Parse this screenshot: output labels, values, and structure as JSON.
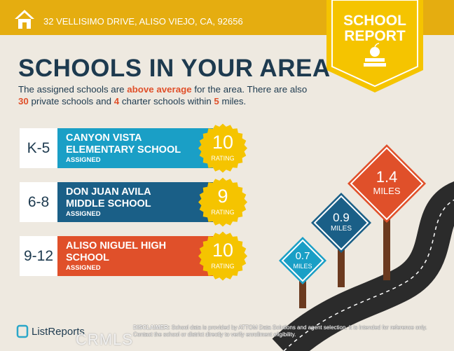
{
  "header": {
    "address": "32 VELLISIMO DRIVE, ALISO VIEJO, CA, 92656"
  },
  "badge": {
    "line1": "SCHOOL",
    "line2": "REPORT"
  },
  "title": "SCHOOLS IN YOUR AREA",
  "intro": {
    "parts": [
      {
        "text": "The assigned schools are ",
        "em": false
      },
      {
        "text": "above average",
        "em": true
      },
      {
        "text": " for the area. There are also ",
        "em": false
      },
      {
        "text": "30",
        "em": true
      },
      {
        "text": " private schools and ",
        "em": false
      },
      {
        "text": "4",
        "em": true
      },
      {
        "text": " charter schools within ",
        "em": false
      },
      {
        "text": "5",
        "em": true
      },
      {
        "text": " miles.",
        "em": false
      }
    ]
  },
  "schools": [
    {
      "grades": "K-5",
      "name_lines": [
        "CANYON VISTA",
        "ELEMENTARY SCHOOL"
      ],
      "status": "ASSIGNED",
      "rating": 10,
      "rating_label": "RATING",
      "color": "#1a9fc6"
    },
    {
      "grades": "6-8",
      "name_lines": [
        "DON JUAN AVILA",
        "MIDDLE SCHOOL"
      ],
      "status": "ASSIGNED",
      "rating": 9,
      "rating_label": "RATING",
      "color": "#1a5f87"
    },
    {
      "grades": "9-12",
      "name_lines": [
        "ALISO NIGUEL HIGH",
        "SCHOOL"
      ],
      "status": "ASSIGNED",
      "rating": 10,
      "rating_label": "RATING",
      "color": "#e0502a"
    }
  ],
  "signs": [
    {
      "distance": 0.7,
      "unit": "MILES",
      "color": "#1a9fc6"
    },
    {
      "distance": 0.9,
      "unit": "MILES",
      "color": "#1a5f87"
    },
    {
      "distance": 1.4,
      "unit": "MILES",
      "color": "#e0502a"
    }
  ],
  "footer": {
    "brand": "ListReports",
    "disclaimer_label": "DISCLAIMER:",
    "disclaimer": "School data is provided by ATTOM Data Solutions and agent selection. It is intended for reference only. Contact the school or district directly to verify enrollment eligibility.",
    "watermark": "CRMLS"
  }
}
